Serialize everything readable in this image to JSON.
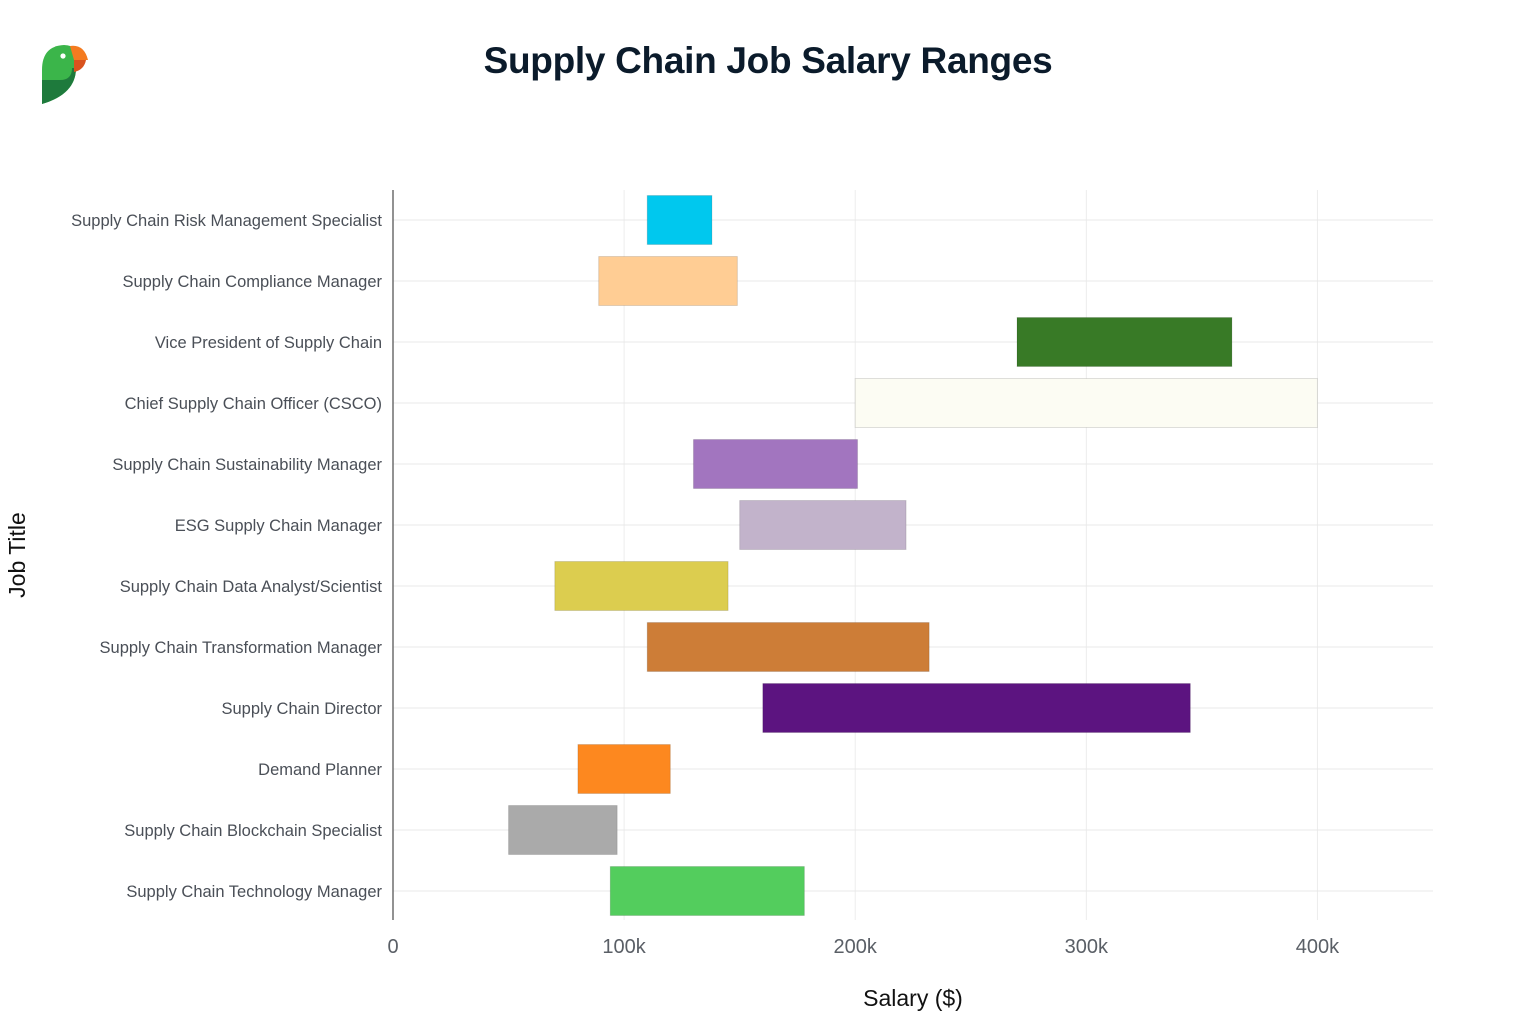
{
  "logo": {
    "icon": "parrot-logo-icon",
    "colors": {
      "green": "#3bb54a",
      "dark_green": "#1e7a3c",
      "orange": "#f47b20"
    }
  },
  "chart_data": {
    "type": "bar",
    "orientation": "horizontal-range",
    "title": "Supply Chain Job Salary Ranges",
    "xlabel": "Salary ($)",
    "ylabel": "Job Title",
    "xlim": [
      0,
      450000
    ],
    "xticks": [
      {
        "value": 0,
        "label": "0"
      },
      {
        "value": 100000,
        "label": "100k"
      },
      {
        "value": 200000,
        "label": "200k"
      },
      {
        "value": 300000,
        "label": "300k"
      },
      {
        "value": 400000,
        "label": "400k"
      }
    ],
    "grid": true,
    "legend": "none",
    "series": [
      {
        "name": "Supply Chain Risk Management Specialist",
        "min": 110000,
        "max": 138000,
        "color": "#00c8ee"
      },
      {
        "name": "Supply Chain Compliance Manager",
        "min": 89000,
        "max": 149000,
        "color": "#ffcd94"
      },
      {
        "name": "Vice President of Supply Chain",
        "min": 270000,
        "max": 363000,
        "color": "#387a26"
      },
      {
        "name": "Chief Supply Chain Officer (CSCO)",
        "min": 200000,
        "max": 400000,
        "color": "#fcfcf3"
      },
      {
        "name": "Supply Chain Sustainability Manager",
        "min": 130000,
        "max": 201000,
        "color": "#a275bf"
      },
      {
        "name": "ESG Supply Chain Manager",
        "min": 150000,
        "max": 222000,
        "color": "#c2b3cb"
      },
      {
        "name": "Supply Chain Data Analyst/Scientist",
        "min": 70000,
        "max": 145000,
        "color": "#dccd4f"
      },
      {
        "name": "Supply Chain Transformation Manager",
        "min": 110000,
        "max": 232000,
        "color": "#cd7d37"
      },
      {
        "name": "Supply Chain Director",
        "min": 160000,
        "max": 345000,
        "color": "#5c1480"
      },
      {
        "name": "Demand Planner",
        "min": 80000,
        "max": 120000,
        "color": "#fd881f"
      },
      {
        "name": "Supply Chain Blockchain Specialist",
        "min": 50000,
        "max": 97000,
        "color": "#aaaaaa"
      },
      {
        "name": "Supply Chain Technology Manager",
        "min": 94000,
        "max": 178000,
        "color": "#53cd5d"
      }
    ]
  }
}
